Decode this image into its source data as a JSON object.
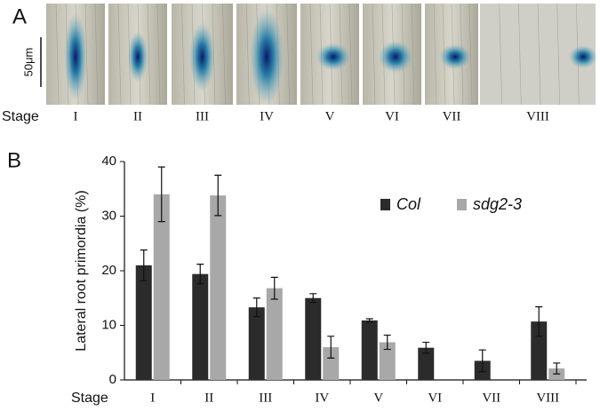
{
  "panel_a": {
    "label": "A",
    "scale_bar": "50μm",
    "stage_label": "Stage",
    "stages": [
      "I",
      "II",
      "III",
      "IV",
      "V",
      "VI",
      "VII",
      "VIII"
    ]
  },
  "panel_b": {
    "label": "B"
  },
  "chart_data": {
    "type": "bar",
    "ylabel": "Lateral root primordia (%)",
    "xlabel": "Stage",
    "categories": [
      "I",
      "II",
      "III",
      "IV",
      "V",
      "VI",
      "VII",
      "VIII"
    ],
    "series": [
      {
        "name": "Col",
        "color": "#2b2b2b",
        "values": [
          21,
          19.4,
          13.3,
          15,
          10.9,
          5.9,
          3.5,
          10.7
        ],
        "errors": [
          2.8,
          1.8,
          1.7,
          0.8,
          0.3,
          1,
          2,
          2.7
        ]
      },
      {
        "name": "sdg2-3",
        "color": "#a8a8a8",
        "values": [
          34,
          33.8,
          16.8,
          6,
          6.9,
          0,
          0,
          2.1
        ],
        "errors": [
          5,
          3.7,
          2,
          2,
          1.3,
          null,
          null,
          1
        ]
      }
    ],
    "ylim": [
      0,
      40
    ],
    "yticks": [
      0,
      10,
      20,
      30,
      40
    ],
    "legend": "upper right"
  }
}
